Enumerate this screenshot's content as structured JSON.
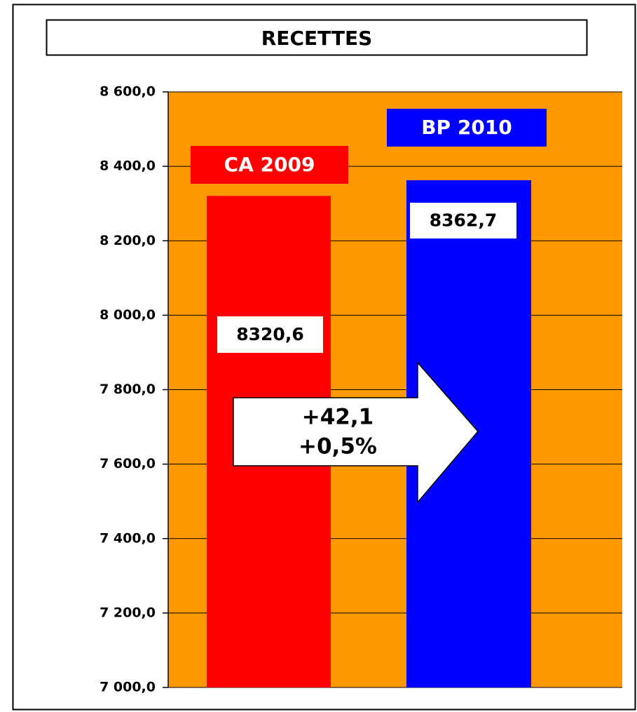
{
  "chart_data": {
    "type": "bar",
    "title": "RECETTES",
    "categories": [
      "CA 2009",
      "BP 2010"
    ],
    "values": [
      8320.6,
      8362.7
    ],
    "value_labels": [
      "8320,6",
      "8362,7"
    ],
    "colors": [
      "#ff0000",
      "#0000ff"
    ],
    "plot_background": "#ff9900",
    "ylim": [
      7000,
      8600
    ],
    "yticks": [
      {
        "value": 7000,
        "label": "7 000,0"
      },
      {
        "value": 7200,
        "label": "7 200,0"
      },
      {
        "value": 7400,
        "label": "7 400,0"
      },
      {
        "value": 7600,
        "label": "7 600,0"
      },
      {
        "value": 7800,
        "label": "7 800,0"
      },
      {
        "value": 8000,
        "label": "8 000,0"
      },
      {
        "value": 8200,
        "label": "8 200,0"
      },
      {
        "value": 8400,
        "label": "8 400,0"
      },
      {
        "value": 8600,
        "label": "8 600,0"
      }
    ],
    "grid": true,
    "annotations": [
      "+42,1",
      "+0,5%"
    ]
  }
}
